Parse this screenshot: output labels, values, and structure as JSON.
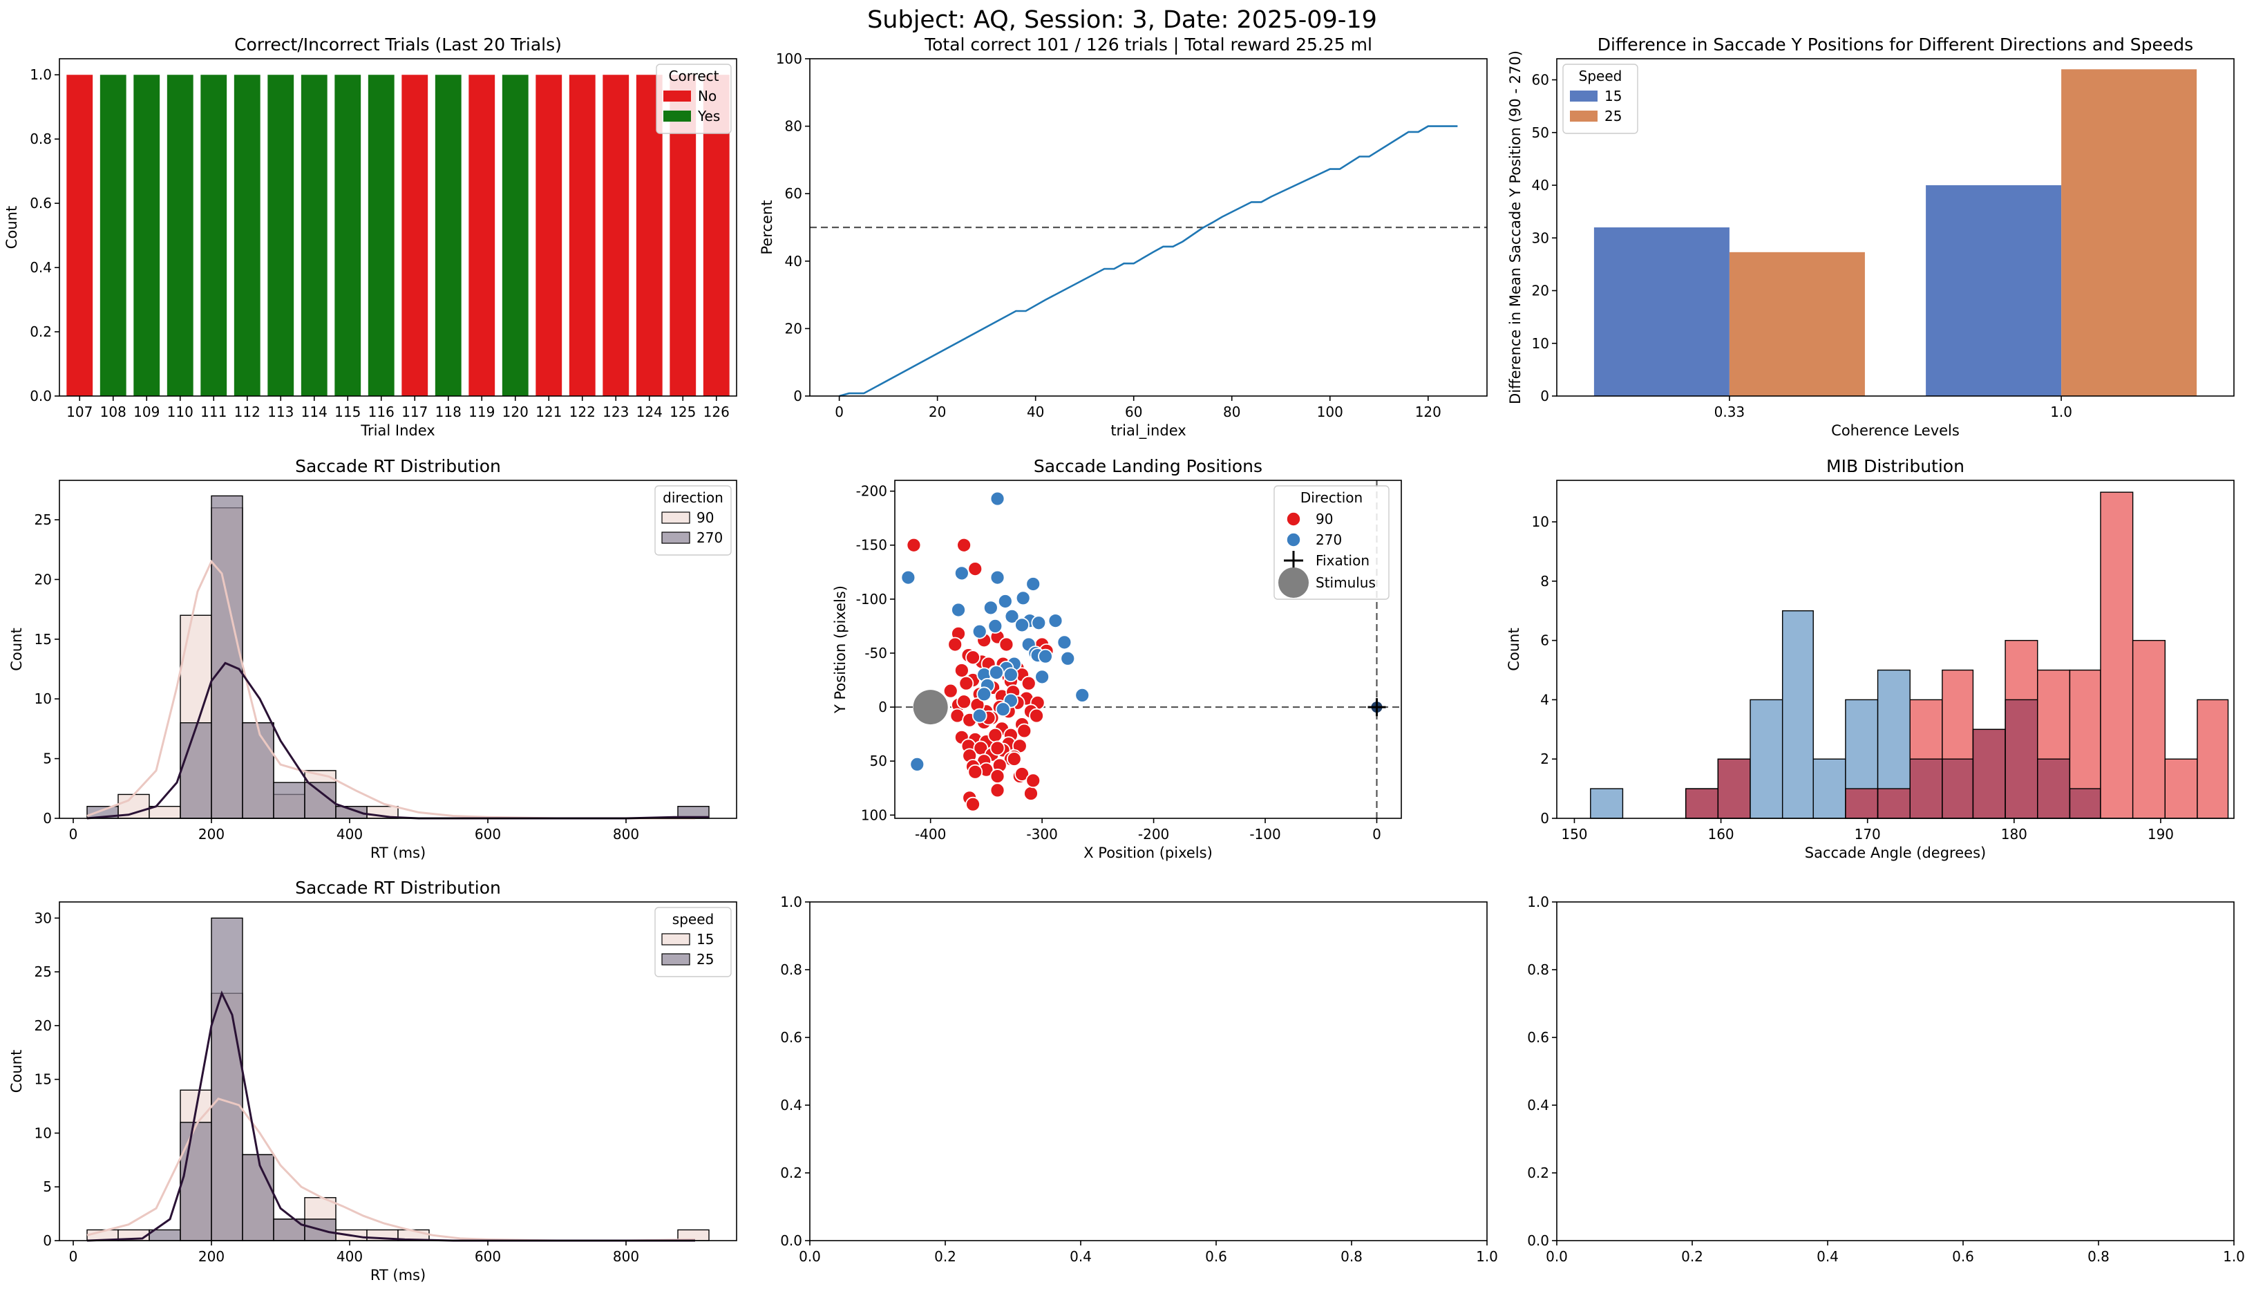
{
  "figure": {
    "suptitle": "Subject: AQ, Session: 3, Date: 2025-09-19"
  },
  "colors": {
    "red": "#e31a1c",
    "green": "#117711",
    "blue_line": "#1f77b4",
    "sea_blue": "#5a7bbf",
    "sea_orange": "#d6885a",
    "kde_light": "#ebc8c2",
    "kde_dark": "#2a1235",
    "hist_light": "#f2e2dd",
    "hist_dark": "#8c8396",
    "dot_red": "#e31a1c",
    "dot_blue": "#3a7ec0",
    "stimulus": "#808080",
    "mib_blue": "#92b5d6",
    "mib_red": "#ef8484",
    "mib_overlap": "#b55368"
  },
  "chart_data": [
    {
      "id": "trials",
      "type": "bar",
      "title": "Correct/Incorrect Trials (Last 20 Trials)",
      "xlabel": "Trial Index",
      "ylabel": "Count",
      "ylim": [
        0,
        1.05
      ],
      "yticks": [
        "0.0",
        "0.2",
        "0.4",
        "0.6",
        "0.8",
        "1.0"
      ],
      "categories": [
        "107",
        "108",
        "109",
        "110",
        "111",
        "112",
        "113",
        "114",
        "115",
        "116",
        "117",
        "118",
        "119",
        "120",
        "121",
        "122",
        "123",
        "124",
        "125",
        "126"
      ],
      "values": [
        1,
        1,
        1,
        1,
        1,
        1,
        1,
        1,
        1,
        1,
        1,
        1,
        1,
        1,
        1,
        1,
        1,
        1,
        1,
        1
      ],
      "correct": [
        "No",
        "Yes",
        "Yes",
        "Yes",
        "Yes",
        "Yes",
        "Yes",
        "Yes",
        "Yes",
        "Yes",
        "No",
        "Yes",
        "No",
        "Yes",
        "No",
        "No",
        "No",
        "No",
        "No",
        "No"
      ],
      "legend": {
        "title": "Correct",
        "entries": [
          "No",
          "Yes"
        ],
        "position": "top-right"
      }
    },
    {
      "id": "percent",
      "type": "line",
      "title": "Total correct 101 / 126 trials | Total reward 25.25 ml",
      "xlabel": "trial_index",
      "ylabel": "Percent",
      "xlim": [
        -6,
        132
      ],
      "ylim": [
        0,
        100
      ],
      "xticks": [
        0,
        20,
        40,
        60,
        80,
        100,
        120
      ],
      "yticks": [
        0,
        20,
        40,
        60,
        80,
        100
      ],
      "x": [
        0,
        2,
        5,
        36,
        38,
        42,
        54,
        56,
        58,
        60,
        64,
        66,
        68,
        70,
        74,
        76,
        78,
        84,
        86,
        88,
        100,
        102,
        106,
        108,
        116,
        118,
        120,
        126
      ],
      "y": [
        0,
        0.8,
        0.8,
        25.2,
        25.2,
        28.5,
        37.7,
        37.7,
        39.3,
        39.3,
        42.7,
        44.3,
        44.3,
        45.8,
        49.8,
        51.4,
        53.1,
        57.5,
        57.5,
        59.1,
        67.3,
        67.3,
        71,
        71,
        78.3,
        78.3,
        80,
        80
      ],
      "reference_line": 50
    },
    {
      "id": "ydiff",
      "type": "bar",
      "title": "Difference in Saccade Y Positions for Different Directions and Speeds",
      "xlabel": "Coherence Levels",
      "ylabel": "Difference in Mean Saccade Y Position (90 - 270)",
      "ylim": [
        0,
        64
      ],
      "yticks": [
        0,
        10,
        20,
        30,
        40,
        50,
        60
      ],
      "categories": [
        "0.33",
        "1.0"
      ],
      "series": [
        {
          "name": "15",
          "values": [
            32,
            40
          ]
        },
        {
          "name": "25",
          "values": [
            27.3,
            62
          ]
        }
      ],
      "legend": {
        "title": "Speed",
        "position": "top-left"
      }
    },
    {
      "id": "rt_dir",
      "type": "bar",
      "title": "Saccade RT Distribution",
      "xlabel": "RT (ms)",
      "ylabel": "Count",
      "xlim": [
        -20,
        960
      ],
      "ylim": [
        0,
        28.3
      ],
      "xticks": [
        0,
        200,
        400,
        600,
        800
      ],
      "yticks": [
        0,
        5,
        10,
        15,
        20,
        25
      ],
      "bin_edges": [
        20,
        65,
        110,
        155,
        200,
        245,
        290,
        335,
        380,
        425,
        470,
        515,
        875,
        920
      ],
      "series": [
        {
          "name": "90",
          "values": [
            0,
            2,
            1,
            17,
            26,
            8,
            2,
            4,
            1,
            1,
            0,
            0,
            0
          ]
        },
        {
          "name": "270",
          "values": [
            1,
            0,
            0,
            8,
            27,
            8,
            3,
            3,
            1,
            0,
            0,
            0,
            1
          ]
        }
      ],
      "kde": [
        {
          "name": "90",
          "x": [
            20,
            80,
            120,
            150,
            180,
            200,
            215,
            240,
            270,
            300,
            330,
            370,
            410,
            450,
            500,
            550,
            600,
            700,
            800,
            900
          ],
          "y": [
            0.2,
            1.5,
            4,
            11,
            19,
            21.5,
            20.5,
            14,
            7,
            4.5,
            4,
            3.5,
            2.3,
            1.2,
            0.5,
            0.2,
            0.1,
            0,
            0,
            0
          ]
        },
        {
          "name": "270",
          "x": [
            20,
            80,
            120,
            150,
            180,
            200,
            220,
            240,
            270,
            300,
            340,
            380,
            420,
            460,
            500,
            550,
            600,
            700,
            800,
            870,
            920
          ],
          "y": [
            0,
            0.3,
            1,
            3,
            8,
            11.5,
            13,
            12.5,
            10,
            6.5,
            3,
            1.2,
            0.4,
            0.1,
            0,
            0,
            0,
            0,
            0,
            0.1,
            0.1
          ]
        }
      ],
      "legend": {
        "title": "direction",
        "position": "top-right"
      }
    },
    {
      "id": "landing",
      "type": "scatter",
      "title": "Saccade Landing Positions",
      "xlabel": "X Position (pixels)",
      "ylabel": "Y Position (pixels)",
      "xlim": [
        -432,
        22
      ],
      "ylim": [
        -210,
        103
      ],
      "y_inverted": true,
      "xticks": [
        -400,
        -300,
        -200,
        -100,
        0
      ],
      "yticks": [
        -200,
        -150,
        -100,
        -50,
        0,
        50,
        100
      ],
      "series": [
        {
          "name": "90",
          "x": [
            -415,
            -370,
            -360,
            -375,
            -352,
            -340,
            -332,
            -310,
            -300,
            -296,
            -335,
            -378,
            -366,
            -354,
            -348,
            -362,
            -322,
            -342,
            -330,
            -372,
            -318,
            -328,
            -312,
            -362,
            -344,
            -382,
            -368,
            -356,
            -336,
            -326,
            -314,
            -304,
            -375,
            -350,
            -338,
            -322,
            -310,
            -376,
            -365,
            -352,
            -345,
            -330,
            -318,
            -305,
            -370,
            -358,
            -348,
            -336,
            -328,
            -316,
            -372,
            -360,
            -350,
            -342,
            -330,
            -320,
            -366,
            -355,
            -345,
            -335,
            -325,
            -365,
            -352,
            -340,
            -328,
            -362,
            -350,
            -338,
            -325,
            -360,
            -340,
            -320,
            -310
          ],
          "y": [
            -150,
            -150,
            -128,
            -68,
            -62,
            -65,
            -58,
            -57,
            -58,
            -52,
            -40,
            -58,
            -48,
            -42,
            -40,
            -46,
            -36,
            -32,
            -28,
            -34,
            -30,
            -24,
            -22,
            -25,
            -18,
            -15,
            -22,
            -12,
            -10,
            -14,
            -8,
            -4,
            -2,
            4,
            0,
            -4,
            4,
            8,
            12,
            14,
            10,
            4,
            16,
            8,
            -5,
            -2,
            10,
            20,
            26,
            22,
            28,
            30,
            32,
            26,
            34,
            36,
            36,
            38,
            44,
            40,
            46,
            45,
            50,
            38,
            48,
            55,
            58,
            54,
            48,
            60,
            64,
            64,
            80
          ],
          "extra": [
            -365,
            84,
            -362,
            90,
            -340,
            77,
            -318,
            62,
            -308,
            68
          ]
        },
        {
          "name": "270",
          "x": [
            -340,
            -420,
            -372,
            -340,
            -308,
            -317,
            -375,
            -333,
            -346,
            -327,
            -311,
            -288,
            -303,
            -318,
            -342,
            -356,
            -280,
            -312,
            -306,
            -304,
            -297,
            -277,
            -325,
            -332,
            -352,
            -300,
            -328,
            -341,
            -264,
            -349,
            -352,
            -328,
            -335,
            -356,
            -412
          ],
          "y": [
            -193,
            -120,
            -124,
            -120,
            -114,
            -101,
            -90,
            -98,
            -92,
            -84,
            -80,
            -80,
            -78,
            -76,
            -75,
            -70,
            -60,
            -58,
            -50,
            -48,
            -47,
            -45,
            -40,
            -36,
            -30,
            -28,
            -30,
            -32,
            -11,
            -20,
            -12,
            -6,
            2,
            8,
            53
          ]
        }
      ],
      "markers": [
        {
          "name": "Fixation",
          "x": 0,
          "y": 0
        },
        {
          "name": "Stimulus",
          "x": -400,
          "y": 0
        }
      ],
      "reference_lines": {
        "x": 0,
        "y": 0
      },
      "legend": {
        "title": "Direction",
        "entries": [
          "90",
          "270",
          "Fixation",
          "Stimulus"
        ],
        "position": "top-right"
      }
    },
    {
      "id": "mib",
      "type": "bar",
      "title": "MIB Distribution",
      "xlabel": "Saccade Angle (degrees)",
      "ylabel": "Count",
      "xlim": [
        148.8,
        195
      ],
      "ylim": [
        0,
        11.4
      ],
      "xticks": [
        150,
        160,
        170,
        180,
        190
      ],
      "yticks": [
        0,
        2,
        4,
        6,
        8,
        10
      ],
      "bin_edges": [
        151.1,
        153.3,
        155.5,
        157.6,
        159.8,
        162.0,
        164.2,
        166.3,
        168.5,
        170.7,
        172.9,
        175.1,
        177.2,
        179.4,
        181.6,
        183.8,
        185.9,
        188.1,
        190.3,
        192.5,
        194.6
      ],
      "series": [
        {
          "name": "blue",
          "values": [
            1,
            0,
            0,
            1,
            2,
            4,
            7,
            2,
            4,
            5,
            2,
            2,
            3,
            4,
            2,
            1,
            0,
            0,
            0,
            0
          ]
        },
        {
          "name": "red",
          "values": [
            0,
            0,
            0,
            1,
            2,
            0,
            0,
            0,
            1,
            1,
            4,
            5,
            3,
            6,
            5,
            5,
            11,
            6,
            2,
            4
          ]
        }
      ]
    },
    {
      "id": "rt_speed",
      "type": "bar",
      "title": "Saccade RT Distribution",
      "xlabel": "RT (ms)",
      "ylabel": "Count",
      "xlim": [
        -20,
        960
      ],
      "ylim": [
        0,
        31.5
      ],
      "xticks": [
        0,
        200,
        400,
        600,
        800
      ],
      "yticks": [
        0,
        5,
        10,
        15,
        20,
        25,
        30
      ],
      "bin_edges": [
        20,
        65,
        110,
        155,
        200,
        245,
        290,
        335,
        380,
        425,
        470,
        515,
        875,
        920
      ],
      "series": [
        {
          "name": "15",
          "values": [
            1,
            1,
            0,
            14,
            23,
            8,
            2,
            4,
            1,
            1,
            1,
            0,
            1
          ]
        },
        {
          "name": "25",
          "values": [
            0,
            0,
            1,
            11,
            30,
            8,
            2,
            2,
            0,
            0,
            0,
            0,
            0
          ]
        }
      ],
      "kde": [
        {
          "name": "15",
          "x": [
            20,
            80,
            120,
            150,
            180,
            210,
            240,
            270,
            300,
            330,
            360,
            390,
            420,
            450,
            480,
            520,
            560,
            600,
            700,
            800,
            900
          ],
          "y": [
            0.5,
            1.5,
            3,
            7,
            11,
            13.2,
            12.6,
            10,
            7,
            5,
            4,
            3.2,
            2.3,
            1.6,
            1.1,
            0.5,
            0.2,
            0.1,
            0,
            0,
            0.1
          ]
        },
        {
          "name": "25",
          "x": [
            20,
            100,
            140,
            160,
            180,
            200,
            215,
            230,
            250,
            270,
            300,
            330,
            370,
            420,
            480,
            550,
            600,
            700,
            800,
            900
          ],
          "y": [
            0,
            0.2,
            2,
            6,
            13,
            20,
            23,
            21,
            14,
            7,
            3,
            1.5,
            0.8,
            0.3,
            0.1,
            0,
            0,
            0,
            0,
            0
          ]
        }
      ],
      "legend": {
        "title": "speed",
        "position": "top-right"
      }
    },
    {
      "id": "empty1",
      "type": "empty",
      "xlim": [
        0,
        1
      ],
      "ylim": [
        0,
        1
      ],
      "xticks": [
        "0.0",
        "0.2",
        "0.4",
        "0.6",
        "0.8",
        "1.0"
      ],
      "yticks": [
        "0.0",
        "0.2",
        "0.4",
        "0.6",
        "0.8",
        "1.0"
      ]
    },
    {
      "id": "empty2",
      "type": "empty",
      "xlim": [
        0,
        1
      ],
      "ylim": [
        0,
        1
      ],
      "xticks": [
        "0.0",
        "0.2",
        "0.4",
        "0.6",
        "0.8",
        "1.0"
      ],
      "yticks": [
        "0.0",
        "0.2",
        "0.4",
        "0.6",
        "0.8",
        "1.0"
      ]
    }
  ]
}
